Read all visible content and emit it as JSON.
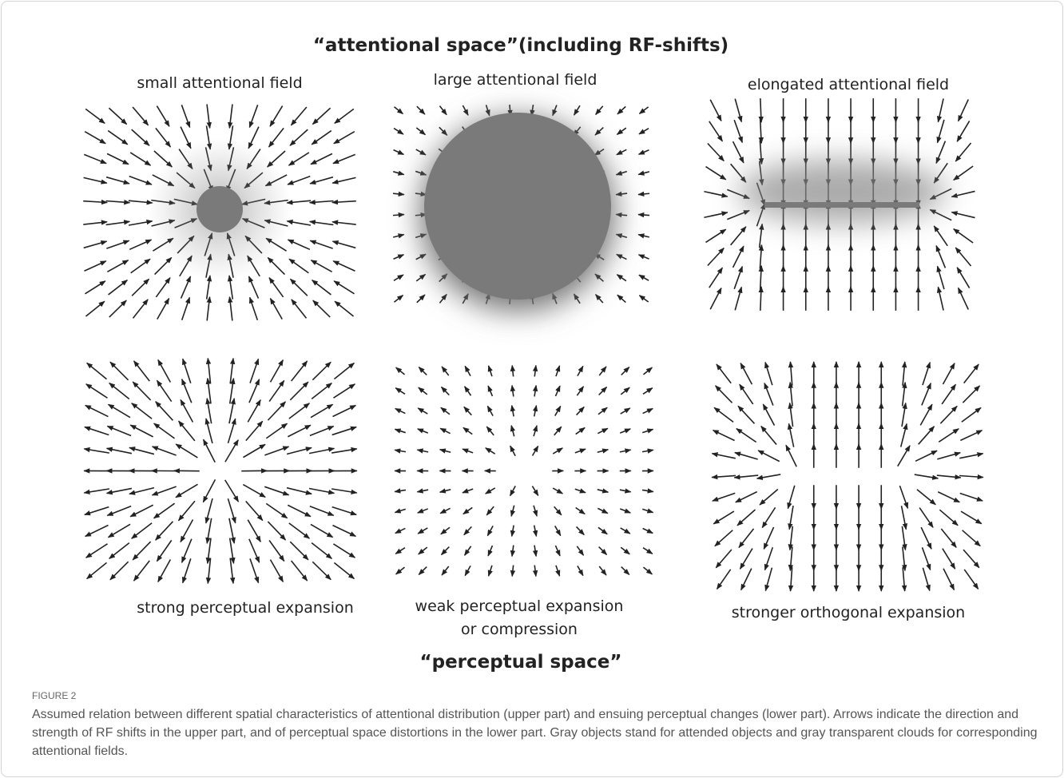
{
  "figure": {
    "top_title": "“attentional space”(including RF-shifts)",
    "top_labels": [
      "small attentional field",
      "large attentional field",
      "elongated attentional field"
    ],
    "bottom_labels": [
      [
        "strong perceptual expansion"
      ],
      [
        "weak perceptual expansion",
        "or compression"
      ],
      [
        "stronger orthogonal expansion"
      ]
    ],
    "bottom_title": "“perceptual space”",
    "label": "FIGURE 2",
    "caption": "Assumed relation between different spatial characteristics of attentional distribution (upper part) and ensuing perceptual changes (lower part). Arrows indicate the direction and strength of RF shifts in the upper part, and of perceptual space distortions in the lower part. Gray objects stand for attended objects and gray transparent clouds for corresponding attentional fields."
  }
}
